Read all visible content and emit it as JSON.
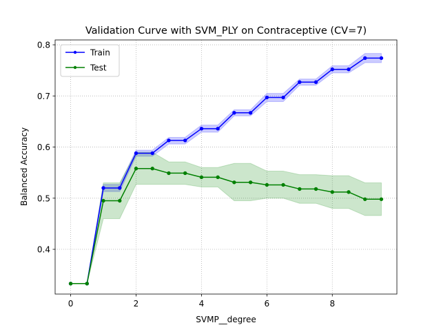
{
  "chart_data": {
    "type": "line",
    "title": "Validation Curve with SVM_PLY on Contraceptive (CV=7)",
    "xlabel": "SVMP__degree",
    "ylabel": "Balanced Accuracy",
    "xlim": [
      -0.475,
      9.975
    ],
    "ylim": [
      0.3125,
      0.8095
    ],
    "x_ticks": [
      0,
      2,
      4,
      6,
      8
    ],
    "y_ticks": [
      0.4,
      0.5,
      0.6,
      0.7,
      0.8
    ],
    "x_tick_labels": [
      "0",
      "2",
      "4",
      "6",
      "8"
    ],
    "y_tick_labels": [
      "0.4",
      "0.5",
      "0.6",
      "0.7",
      "0.8"
    ],
    "grid": true,
    "legend_position": "top-left",
    "x": [
      0,
      0.5,
      1,
      1.5,
      2,
      2.5,
      3,
      3.5,
      4,
      4.5,
      5,
      5.5,
      6,
      6.5,
      7,
      7.5,
      8,
      8.5,
      9,
      9.5
    ],
    "series": [
      {
        "name": "Train",
        "color": "#0000ff",
        "values": [
          0.333,
          0.333,
          0.52,
          0.52,
          0.588,
          0.588,
          0.613,
          0.613,
          0.636,
          0.636,
          0.667,
          0.667,
          0.697,
          0.697,
          0.727,
          0.727,
          0.752,
          0.752,
          0.774,
          0.774
        ],
        "lower": [
          0.333,
          0.333,
          0.513,
          0.513,
          0.582,
          0.582,
          0.606,
          0.606,
          0.629,
          0.629,
          0.661,
          0.661,
          0.689,
          0.689,
          0.721,
          0.721,
          0.745,
          0.745,
          0.765,
          0.765
        ],
        "upper": [
          0.333,
          0.333,
          0.527,
          0.527,
          0.594,
          0.594,
          0.619,
          0.619,
          0.643,
          0.643,
          0.673,
          0.673,
          0.705,
          0.705,
          0.733,
          0.733,
          0.759,
          0.759,
          0.783,
          0.783
        ]
      },
      {
        "name": "Test",
        "color": "#008000",
        "values": [
          0.333,
          0.333,
          0.495,
          0.495,
          0.558,
          0.558,
          0.549,
          0.549,
          0.541,
          0.541,
          0.531,
          0.531,
          0.526,
          0.526,
          0.518,
          0.518,
          0.512,
          0.512,
          0.498,
          0.498
        ],
        "lower": [
          0.333,
          0.333,
          0.46,
          0.46,
          0.527,
          0.527,
          0.527,
          0.527,
          0.522,
          0.522,
          0.495,
          0.495,
          0.5,
          0.5,
          0.49,
          0.49,
          0.48,
          0.48,
          0.466,
          0.466
        ],
        "upper": [
          0.333,
          0.333,
          0.53,
          0.53,
          0.59,
          0.59,
          0.571,
          0.571,
          0.56,
          0.56,
          0.568,
          0.568,
          0.553,
          0.553,
          0.546,
          0.546,
          0.544,
          0.544,
          0.53,
          0.53
        ]
      }
    ]
  }
}
